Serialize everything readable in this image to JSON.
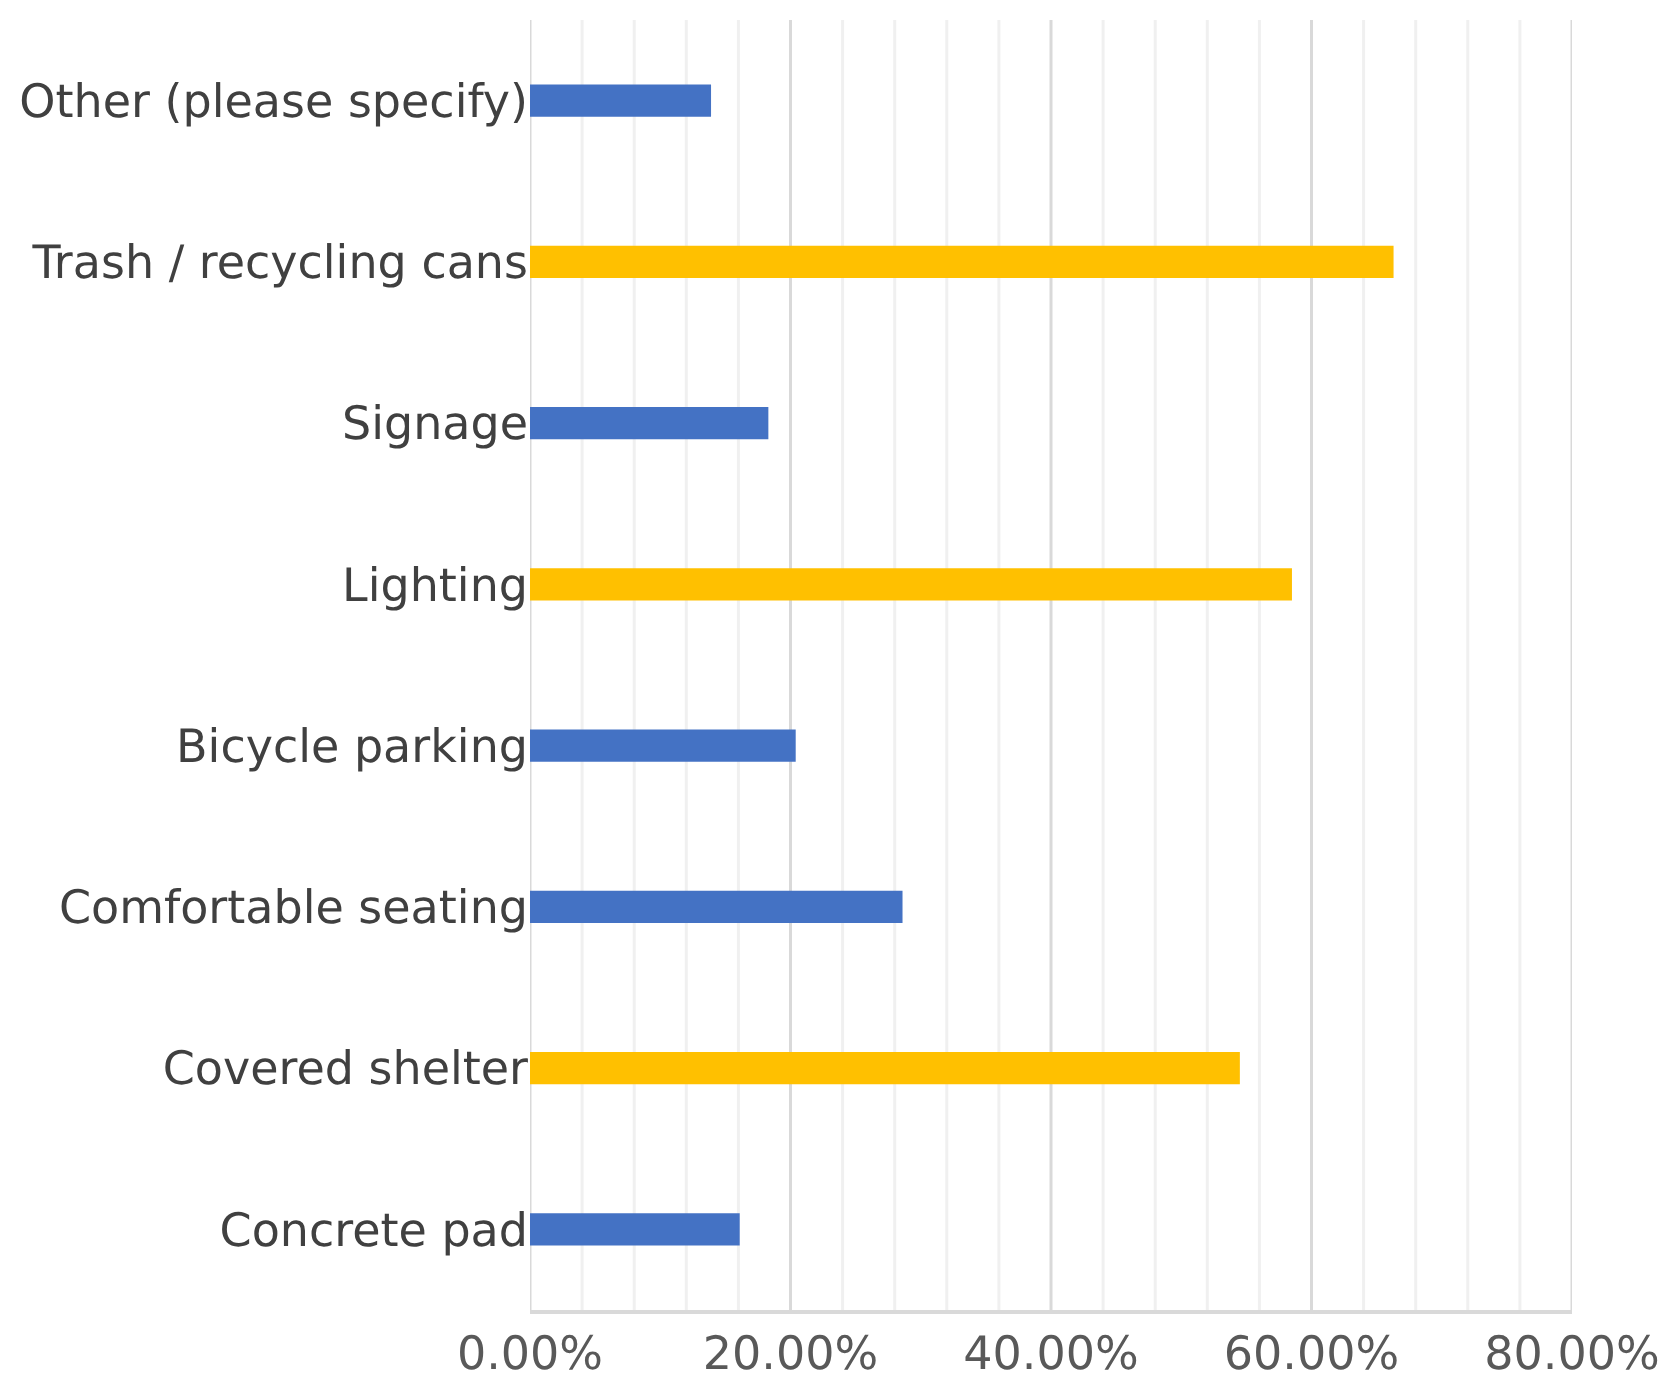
{
  "chart_data": {
    "type": "bar",
    "orientation": "horizontal",
    "categories": [
      "Other (please specify)",
      "Trash / recycling cans",
      "Signage",
      "Lighting",
      "Bicycle parking",
      "Comfortable seating",
      "Covered shelter",
      "Concrete pad"
    ],
    "values": [
      13.9,
      66.3,
      18.3,
      58.5,
      20.4,
      28.6,
      54.5,
      16.1
    ],
    "colors": [
      "#4472c4",
      "#ffc000",
      "#4472c4",
      "#ffc000",
      "#4472c4",
      "#4472c4",
      "#ffc000",
      "#4472c4"
    ],
    "xlim": [
      0,
      80
    ],
    "xticks": [
      {
        "value": 0,
        "label": "0.00%"
      },
      {
        "value": 4,
        "label": null
      },
      {
        "value": 8,
        "label": null
      },
      {
        "value": 12,
        "label": null
      },
      {
        "value": 16,
        "label": null
      },
      {
        "value": 20,
        "label": "20.00%"
      },
      {
        "value": 24,
        "label": null
      },
      {
        "value": 28,
        "label": null
      },
      {
        "value": 32,
        "label": null
      },
      {
        "value": 36,
        "label": null
      },
      {
        "value": 40,
        "label": "40.00%"
      },
      {
        "value": 44,
        "label": null
      },
      {
        "value": 48,
        "label": null
      },
      {
        "value": 52,
        "label": null
      },
      {
        "value": 56,
        "label": null
      },
      {
        "value": 60,
        "label": "60.00%"
      },
      {
        "value": 64,
        "label": null
      },
      {
        "value": 68,
        "label": null
      },
      {
        "value": 72,
        "label": null
      },
      {
        "value": 76,
        "label": null
      },
      {
        "value": 80,
        "label": "80.00%"
      }
    ],
    "grid": "x"
  }
}
